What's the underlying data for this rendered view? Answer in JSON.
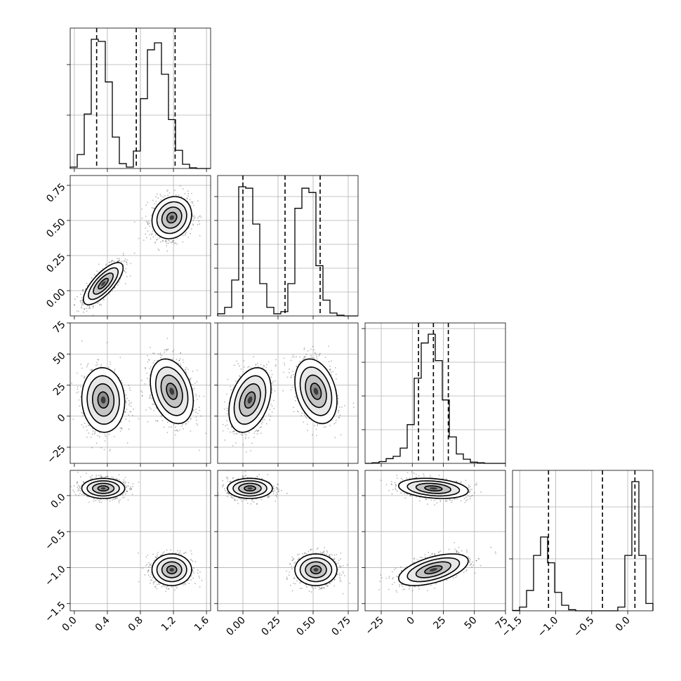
{
  "chart_data": {
    "type": "corner",
    "parameters": [
      {
        "range": [
          -0.05,
          1.65
        ],
        "ticks": [
          0.0,
          0.4,
          0.8,
          1.2,
          1.6
        ],
        "tick_labels": [
          "0.0",
          "0.4",
          "0.8",
          "1.2",
          "1.6"
        ],
        "quantiles": [
          0.27,
          0.75,
          1.22
        ],
        "hist": {
          "edges": [
            -0.05,
            0.035,
            0.12,
            0.205,
            0.29,
            0.375,
            0.46,
            0.545,
            0.63,
            0.715,
            0.8,
            0.885,
            0.97,
            1.055,
            1.14,
            1.225,
            1.31,
            1.395,
            1.48,
            1.565,
            1.65
          ],
          "counts": [
            2,
            20,
            78,
            185,
            182,
            124,
            45,
            7,
            2,
            25,
            100,
            170,
            180,
            135,
            70,
            26,
            6,
            1,
            0,
            0
          ]
        }
      },
      {
        "range": [
          -0.18,
          0.82
        ],
        "ticks": [
          0.0,
          0.25,
          0.5,
          0.75
        ],
        "tick_labels": [
          "0.00",
          "0.25",
          "0.50",
          "0.75"
        ],
        "quantiles": [
          0.0,
          0.3,
          0.55
        ],
        "hist": {
          "edges": [
            -0.18,
            -0.13,
            -0.08,
            -0.03,
            0.02,
            0.07,
            0.12,
            0.17,
            0.22,
            0.27,
            0.32,
            0.37,
            0.42,
            0.47,
            0.52,
            0.57,
            0.62,
            0.67,
            0.72,
            0.77,
            0.82
          ],
          "counts": [
            3,
            12,
            50,
            180,
            178,
            128,
            45,
            12,
            3,
            6,
            45,
            150,
            178,
            172,
            70,
            22,
            4,
            1,
            0,
            0
          ]
        }
      },
      {
        "range": [
          -38,
          75
        ],
        "ticks": [
          -25,
          0,
          25,
          50,
          75
        ],
        "tick_labels": [
          "−25",
          "0",
          "25",
          "50",
          "75"
        ],
        "quantiles": [
          5,
          17,
          29
        ],
        "hist": {
          "edges": [
            -38,
            -32.35,
            -26.7,
            -21.05,
            -15.4,
            -9.75,
            -4.1,
            1.55,
            7.2,
            12.85,
            18.5,
            24.15,
            29.8,
            35.45,
            41.1,
            46.75,
            52.4,
            58.05,
            63.7,
            69.35,
            75
          ],
          "counts": [
            0,
            1,
            3,
            8,
            12,
            26,
            66,
            145,
            205,
            220,
            175,
            108,
            45,
            16,
            7,
            2,
            1,
            0,
            0,
            0
          ]
        }
      },
      {
        "range": [
          -1.6,
          0.35
        ],
        "ticks": [
          -1.5,
          -1.0,
          -0.5,
          0.0
        ],
        "tick_labels": [
          "−1.5",
          "−1.0",
          "−0.5",
          "0.0"
        ],
        "quantiles": [
          -1.1,
          -0.35,
          0.1
        ],
        "hist": {
          "edges": [
            -1.6,
            -1.5025,
            -1.405,
            -1.3075,
            -1.21,
            -1.1125,
            -1.015,
            -0.9175,
            -0.82,
            -0.7225,
            -0.625,
            -0.5275,
            -0.43,
            -0.3325,
            -0.235,
            -0.1375,
            -0.04,
            0.0575,
            0.155,
            0.2525,
            0.35
          ],
          "counts": [
            1,
            10,
            55,
            150,
            200,
            130,
            50,
            15,
            3,
            0,
            0,
            0,
            0,
            0,
            0,
            10,
            150,
            350,
            150,
            20
          ]
        }
      }
    ],
    "pairs": [
      {
        "row": 1,
        "col": 0,
        "modes": [
          {
            "mx": 0.35,
            "my": 0.05,
            "sx": 0.12,
            "sy": 0.075,
            "rho": 0.75
          },
          {
            "mx": 1.18,
            "my": 0.52,
            "sx": 0.12,
            "sy": 0.075,
            "rho": 0.15
          }
        ]
      },
      {
        "row": 2,
        "col": 0,
        "modes": [
          {
            "mx": 0.35,
            "my": 13,
            "sx": 0.13,
            "sy": 13,
            "rho": -0.05
          },
          {
            "mx": 1.18,
            "my": 20,
            "sx": 0.13,
            "sy": 13,
            "rho": -0.3
          }
        ]
      },
      {
        "row": 2,
        "col": 1,
        "modes": [
          {
            "mx": 0.05,
            "my": 13,
            "sx": 0.075,
            "sy": 13,
            "rho": 0.35
          },
          {
            "mx": 0.52,
            "my": 20,
            "sx": 0.075,
            "sy": 13,
            "rho": -0.3
          }
        ]
      },
      {
        "row": 3,
        "col": 0,
        "modes": [
          {
            "mx": 0.35,
            "my": 0.1,
            "sx": 0.13,
            "sy": 0.07,
            "rho": 0.0
          },
          {
            "mx": 1.18,
            "my": -1.03,
            "sx": 0.12,
            "sy": 0.11,
            "rho": 0.0
          }
        ]
      },
      {
        "row": 3,
        "col": 1,
        "modes": [
          {
            "mx": 0.05,
            "my": 0.1,
            "sx": 0.08,
            "sy": 0.07,
            "rho": 0.0
          },
          {
            "mx": 0.52,
            "my": -1.03,
            "sx": 0.075,
            "sy": 0.11,
            "rho": 0.0
          }
        ]
      },
      {
        "row": 3,
        "col": 2,
        "modes": [
          {
            "mx": 17,
            "my": 0.1,
            "sx": 14,
            "sy": 0.07,
            "rho": -0.25
          },
          {
            "mx": 17,
            "my": -1.03,
            "sx": 14,
            "sy": 0.11,
            "rho": 0.55
          }
        ]
      }
    ],
    "histogram_gridlines": [
      [
        0.38,
        0.74
      ],
      [
        0.17,
        0.34,
        0.51,
        0.68,
        0.85
      ],
      [
        0.24,
        0.48,
        0.72,
        0.96
      ],
      [
        0.37,
        0.74
      ]
    ],
    "pair_gridlines": {
      "x": [
        [
          0.4,
          0.8,
          1.2,
          1.6
        ],
        [
          0.0,
          0.25,
          0.5,
          0.75
        ],
        [
          -25,
          0,
          25,
          50
        ]
      ],
      "y": [
        [
          0.0,
          0.25,
          0.5,
          0.75
        ],
        [
          -25,
          0,
          25,
          50
        ],
        [
          -1.5,
          -1.0,
          -0.5,
          0.0
        ]
      ]
    },
    "grid": true,
    "xlabel": "",
    "ylabel": ""
  }
}
